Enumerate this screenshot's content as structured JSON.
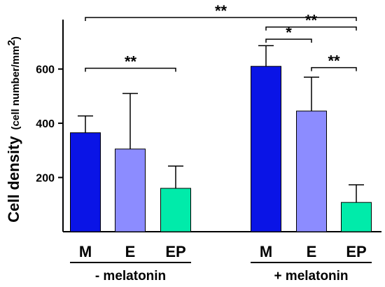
{
  "chart_data": {
    "type": "bar",
    "ylabel": "Cell density",
    "ylabel_unit": "(cell number/mm",
    "ylabel_unit_sup": "2",
    "ylabel_unit_close": ")",
    "ylim": [
      0,
      760
    ],
    "yticks": [
      200,
      400,
      600
    ],
    "grid": false,
    "groups": [
      {
        "label": "- melatonin",
        "bars": [
          {
            "category": "M",
            "value": 365,
            "error": 62,
            "color": "#0a14e6"
          },
          {
            "category": "E",
            "value": 305,
            "error": 205,
            "color": "#8c8cff"
          },
          {
            "category": "EP",
            "value": 160,
            "error": 82,
            "color": "#00ebaa"
          }
        ]
      },
      {
        "label": "+ melatonin",
        "bars": [
          {
            "category": "M",
            "value": 610,
            "error": 76,
            "color": "#0a14e6"
          },
          {
            "category": "E",
            "value": 445,
            "error": 125,
            "color": "#8c8cff"
          },
          {
            "category": "EP",
            "value": 108,
            "error": 65,
            "color": "#00ebaa"
          }
        ]
      }
    ],
    "significance": [
      {
        "from": [
          0,
          0
        ],
        "to": [
          1,
          2
        ],
        "level": 790,
        "label": "**"
      },
      {
        "from": [
          0,
          0
        ],
        "to": [
          0,
          2
        ],
        "level": 603,
        "label": "**"
      },
      {
        "from": [
          1,
          0
        ],
        "to": [
          1,
          2
        ],
        "level": 755,
        "label": "**"
      },
      {
        "from": [
          1,
          0
        ],
        "to": [
          1,
          1
        ],
        "level": 710,
        "label": "*"
      },
      {
        "from": [
          1,
          1
        ],
        "to": [
          1,
          2
        ],
        "level": 605,
        "label": "**"
      }
    ]
  }
}
